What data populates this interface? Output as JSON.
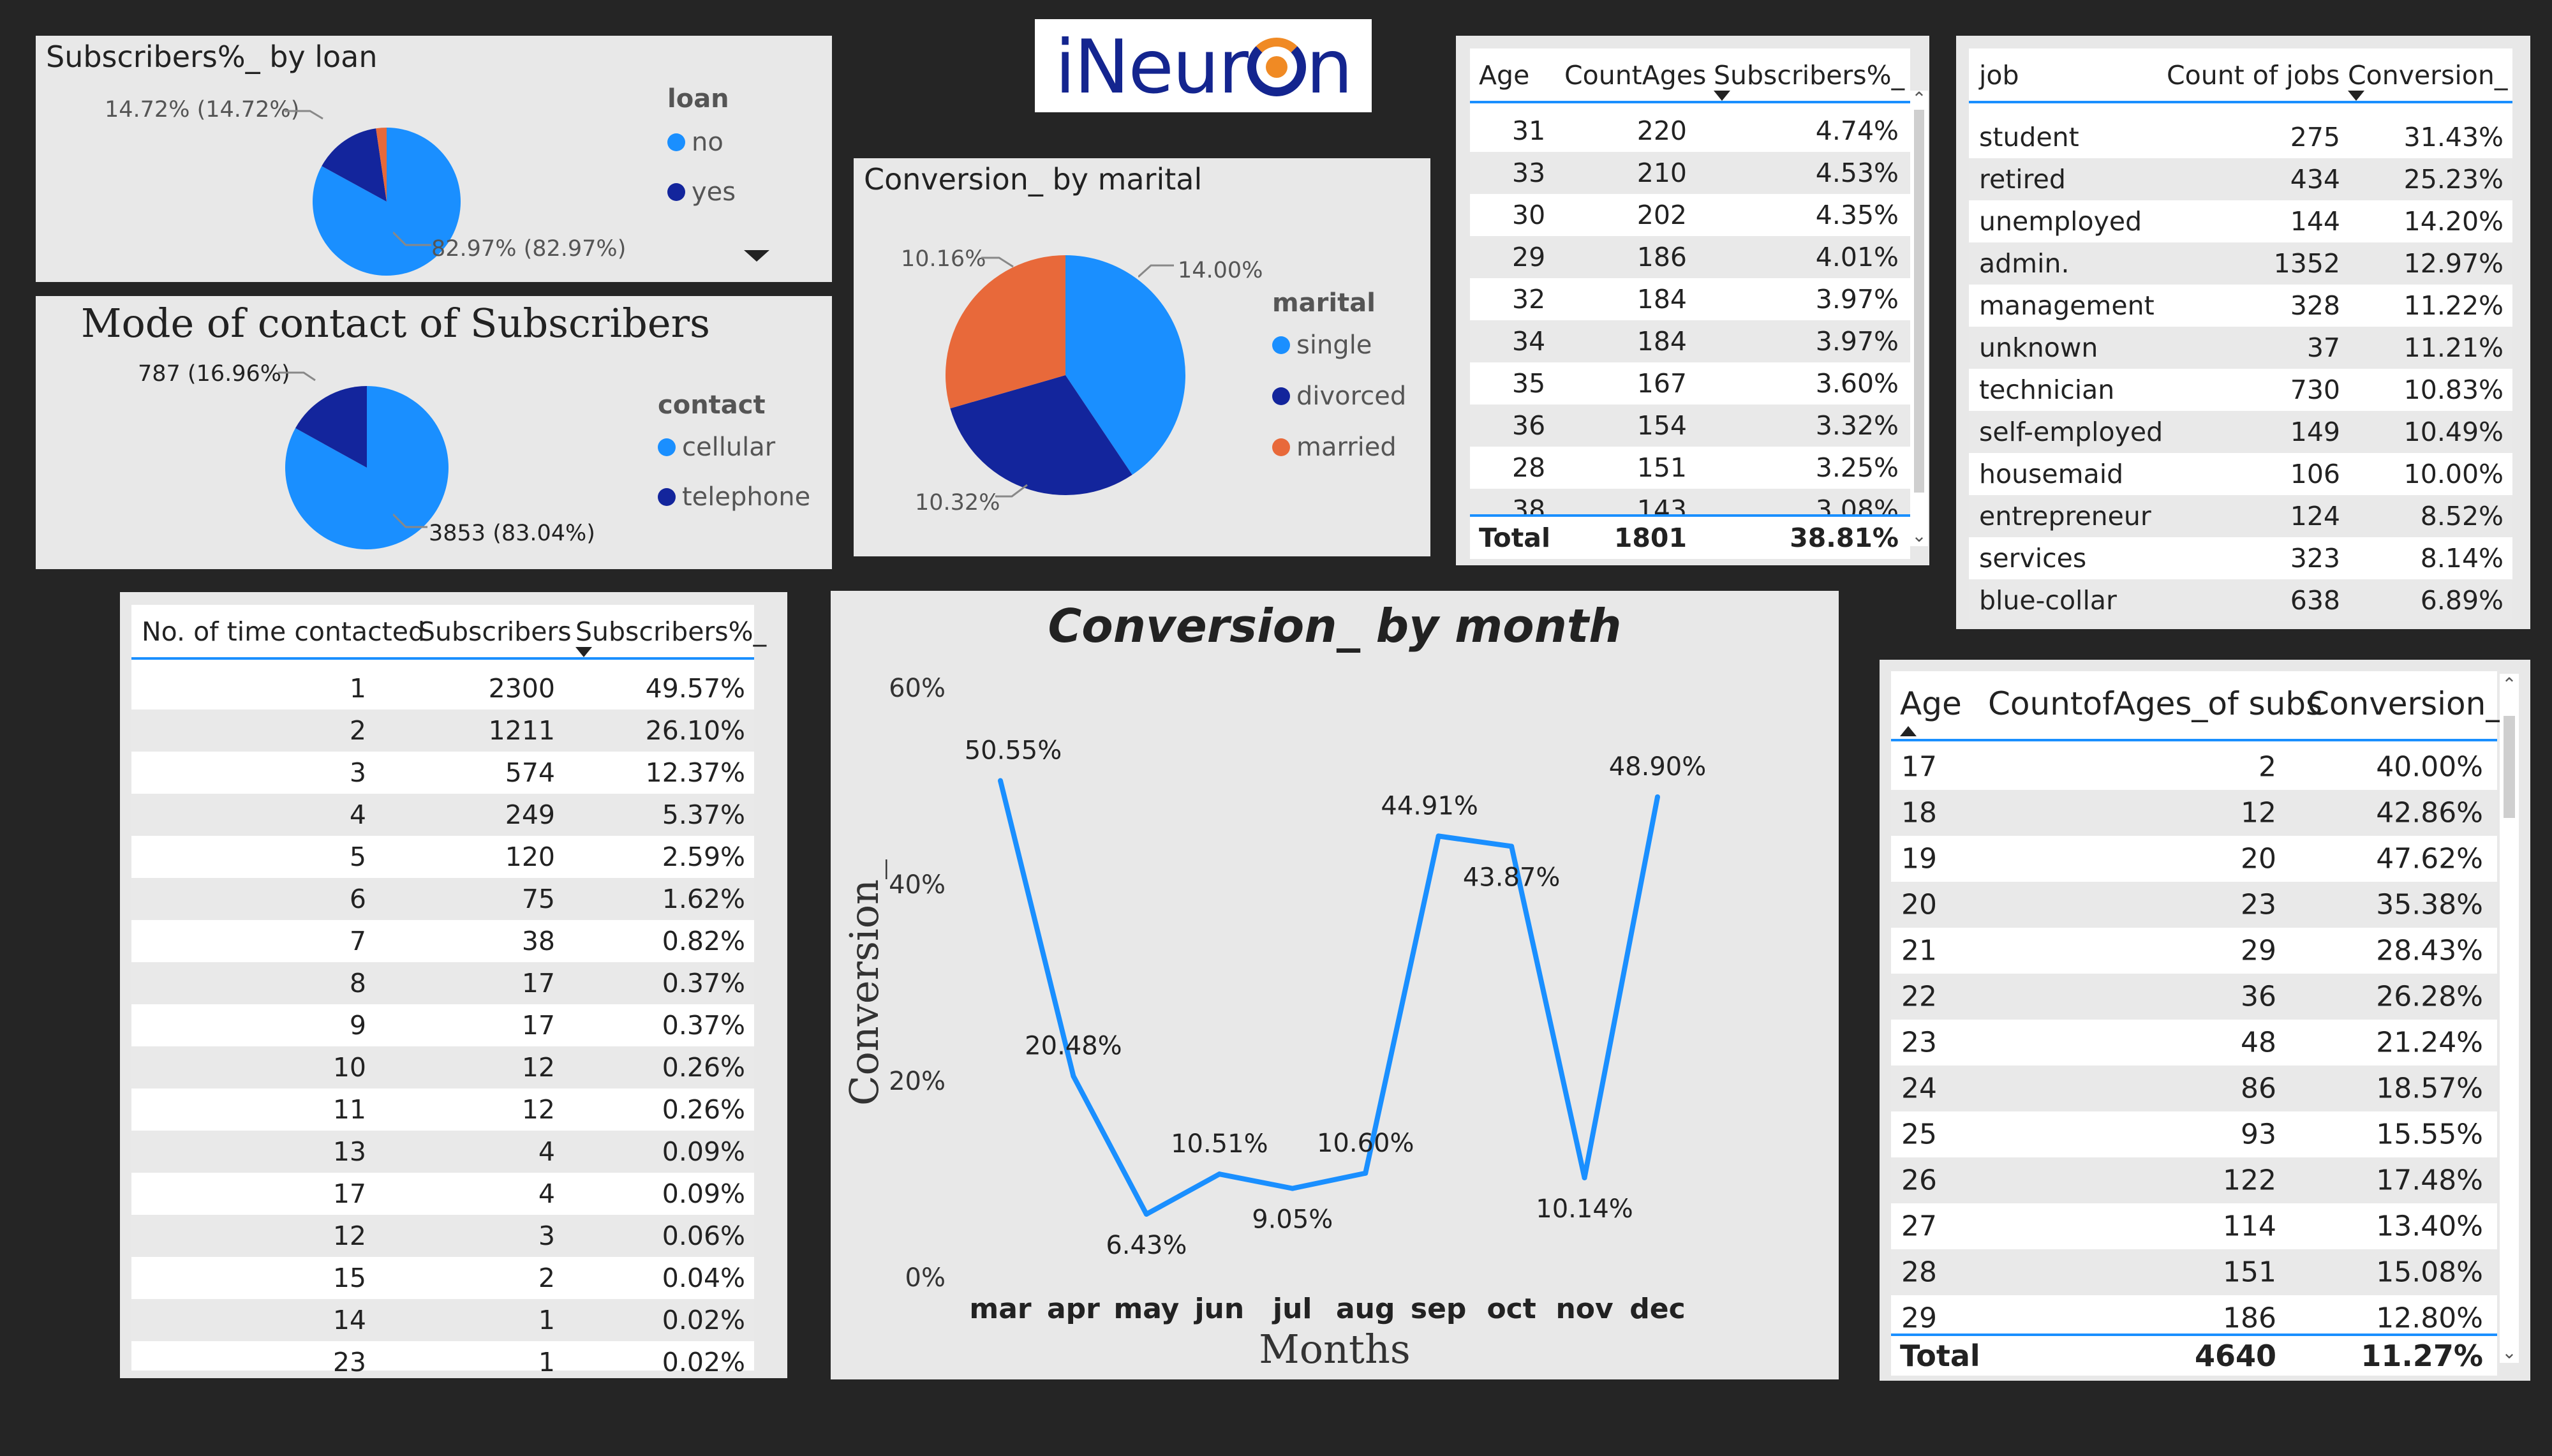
{
  "logo": {
    "text_left": "iNeur",
    "text_right": "n"
  },
  "loan_chart": {
    "title": "Subscribers%_ by loan",
    "legend_title": "loan",
    "legend": [
      {
        "label": "no",
        "color": "#1a8fff"
      },
      {
        "label": "yes",
        "color": "#13259c"
      }
    ],
    "labels": {
      "yes": "14.72% (14.72%)",
      "no": "82.97% (82.97%)"
    }
  },
  "contact_chart": {
    "title": "Mode of contact of Subscribers",
    "legend_title": "contact",
    "legend": [
      {
        "label": "cellular",
        "color": "#1a8fff"
      },
      {
        "label": "telephone",
        "color": "#13259c"
      }
    ],
    "labels": {
      "telephone": "787 (16.96%)",
      "cellular": "3853 (83.04%)"
    }
  },
  "marital_chart": {
    "title": "Conversion_ by marital",
    "legend_title": "marital",
    "legend": [
      {
        "label": "single",
        "color": "#1a8fff"
      },
      {
        "label": "divorced",
        "color": "#13259c"
      },
      {
        "label": "married",
        "color": "#e8693a"
      }
    ],
    "labels": {
      "single": "14.00%",
      "divorced": "10.32%",
      "married": "10.16%"
    }
  },
  "age_table": {
    "headers": [
      "Age",
      "CountAges",
      "Subscribers%_"
    ],
    "rows": [
      [
        "31",
        "220",
        "4.74%"
      ],
      [
        "33",
        "210",
        "4.53%"
      ],
      [
        "30",
        "202",
        "4.35%"
      ],
      [
        "29",
        "186",
        "4.01%"
      ],
      [
        "32",
        "184",
        "3.97%"
      ],
      [
        "34",
        "184",
        "3.97%"
      ],
      [
        "35",
        "167",
        "3.60%"
      ],
      [
        "36",
        "154",
        "3.32%"
      ],
      [
        "28",
        "151",
        "3.25%"
      ],
      [
        "38",
        "143",
        "3.08%"
      ]
    ],
    "total": [
      "Total",
      "1801",
      "38.81%"
    ]
  },
  "job_table": {
    "headers": [
      "job",
      "Count of jobs",
      "Conversion_"
    ],
    "rows": [
      [
        "student",
        "275",
        "31.43%"
      ],
      [
        "retired",
        "434",
        "25.23%"
      ],
      [
        "unemployed",
        "144",
        "14.20%"
      ],
      [
        "admin.",
        "1352",
        "12.97%"
      ],
      [
        "management",
        "328",
        "11.22%"
      ],
      [
        "unknown",
        "37",
        "11.21%"
      ],
      [
        "technician",
        "730",
        "10.83%"
      ],
      [
        "self-employed",
        "149",
        "10.49%"
      ],
      [
        "housemaid",
        "106",
        "10.00%"
      ],
      [
        "entrepreneur",
        "124",
        "8.52%"
      ],
      [
        "services",
        "323",
        "8.14%"
      ],
      [
        "blue-collar",
        "638",
        "6.89%"
      ]
    ]
  },
  "contacted_table": {
    "headers": [
      "No. of time contacted",
      "Subscribers",
      "Subscribers%_"
    ],
    "rows": [
      [
        "1",
        "2300",
        "49.57%"
      ],
      [
        "2",
        "1211",
        "26.10%"
      ],
      [
        "3",
        "574",
        "12.37%"
      ],
      [
        "4",
        "249",
        "5.37%"
      ],
      [
        "5",
        "120",
        "2.59%"
      ],
      [
        "6",
        "75",
        "1.62%"
      ],
      [
        "7",
        "38",
        "0.82%"
      ],
      [
        "8",
        "17",
        "0.37%"
      ],
      [
        "9",
        "17",
        "0.37%"
      ],
      [
        "10",
        "12",
        "0.26%"
      ],
      [
        "11",
        "12",
        "0.26%"
      ],
      [
        "13",
        "4",
        "0.09%"
      ],
      [
        "17",
        "4",
        "0.09%"
      ],
      [
        "12",
        "3",
        "0.06%"
      ],
      [
        "15",
        "2",
        "0.04%"
      ],
      [
        "14",
        "1",
        "0.02%"
      ],
      [
        "23",
        "1",
        "0.02%"
      ]
    ]
  },
  "age_conv_table": {
    "headers": [
      "Age",
      "CountofAges_of subs",
      "Conversion_"
    ],
    "rows": [
      [
        "17",
        "2",
        "40.00%"
      ],
      [
        "18",
        "12",
        "42.86%"
      ],
      [
        "19",
        "20",
        "47.62%"
      ],
      [
        "20",
        "23",
        "35.38%"
      ],
      [
        "21",
        "29",
        "28.43%"
      ],
      [
        "22",
        "36",
        "26.28%"
      ],
      [
        "23",
        "48",
        "21.24%"
      ],
      [
        "24",
        "86",
        "18.57%"
      ],
      [
        "25",
        "93",
        "15.55%"
      ],
      [
        "26",
        "122",
        "17.48%"
      ],
      [
        "27",
        "114",
        "13.40%"
      ],
      [
        "28",
        "151",
        "15.08%"
      ],
      [
        "29",
        "186",
        "12.80%"
      ]
    ],
    "total": [
      "Total",
      "4640",
      "11.27%"
    ]
  },
  "chart_data": [
    {
      "type": "pie",
      "title": "Subscribers%_ by loan",
      "categories": [
        "no",
        "yes"
      ],
      "values": [
        82.97,
        14.72
      ],
      "legend_title": "loan",
      "colors": [
        "#1a8fff",
        "#13259c",
        "#e8693a"
      ],
      "extra_slice_color": "#e8693a"
    },
    {
      "type": "pie",
      "title": "Mode of contact of Subscribers",
      "categories": [
        "cellular",
        "telephone"
      ],
      "values": [
        3853,
        787
      ],
      "legend_title": "contact",
      "colors": [
        "#1a8fff",
        "#13259c"
      ]
    },
    {
      "type": "pie",
      "title": "Conversion_ by marital",
      "categories": [
        "single",
        "divorced",
        "married"
      ],
      "values": [
        14.0,
        10.32,
        10.16
      ],
      "legend_title": "marital",
      "colors": [
        "#1a8fff",
        "#13259c",
        "#e8693a"
      ]
    },
    {
      "type": "line",
      "title": "Conversion_ by month",
      "xlabel": "Months",
      "ylabel": "Conversion_",
      "categories": [
        "mar",
        "apr",
        "may",
        "jun",
        "jul",
        "aug",
        "sep",
        "oct",
        "nov",
        "dec"
      ],
      "values": [
        50.55,
        20.48,
        6.43,
        10.51,
        9.05,
        10.6,
        44.91,
        43.87,
        10.14,
        48.9
      ],
      "data_labels": [
        "50.55%",
        "20.48%",
        "6.43%",
        "10.51%",
        "9.05%",
        "10.60%",
        "44.91%",
        "43.87%",
        "10.14%",
        "48.90%"
      ],
      "yticks": [
        "0%",
        "20%",
        "40%",
        "60%"
      ],
      "ylim": [
        0,
        60
      ],
      "line_color": "#1a8fff"
    }
  ]
}
